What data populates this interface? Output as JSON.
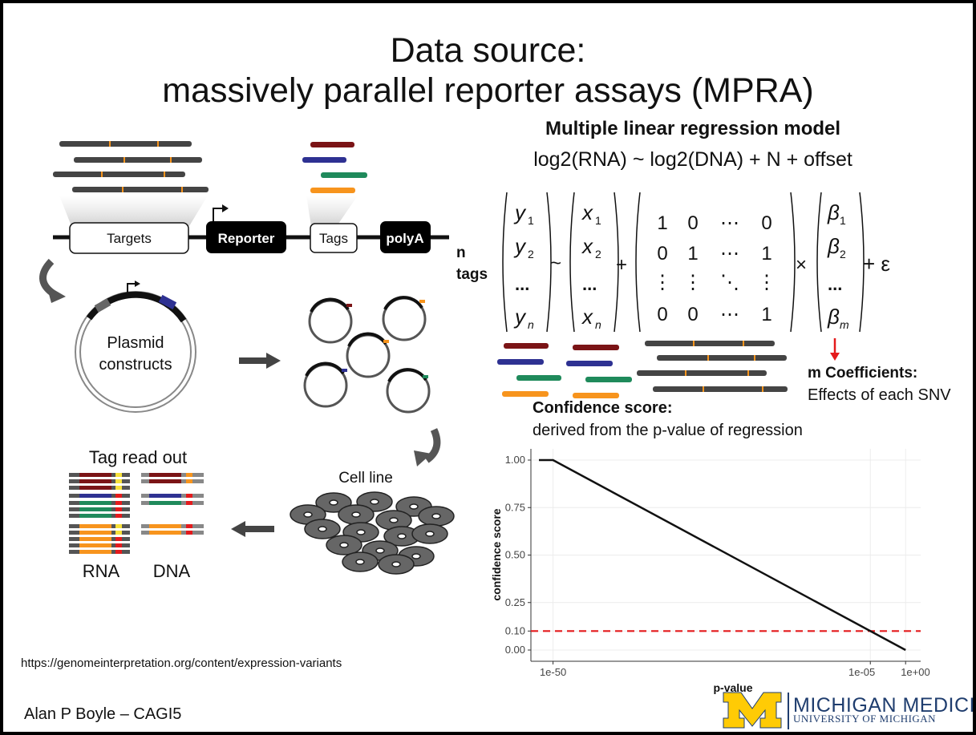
{
  "title": {
    "line1": "Data source:",
    "line2": "massively parallel reporter assays (MPRA)"
  },
  "diagram": {
    "construct_labels": {
      "targets": "Targets",
      "reporter": "Reporter",
      "tags": "Tags",
      "polya": "polyA"
    },
    "plasmid_label_1": "Plasmid",
    "plasmid_label_2": "constructs",
    "cell_line_label": "Cell line",
    "tag_readout_label": "Tag read out",
    "rna_label": "RNA",
    "dna_label": "DNA",
    "colors": {
      "dark_red": "#7b1416",
      "navy": "#2e3192",
      "green": "#1f8a5b",
      "orange": "#f7941d",
      "gray": "#444444"
    }
  },
  "regression": {
    "title": "Multiple linear regression model",
    "formula": "log2(RNA) ~ log2(DNA) + N + offset",
    "n_tags_line1": "n",
    "n_tags_line2": "tags",
    "matrix": {
      "y": [
        "y",
        "y",
        "...",
        "y"
      ],
      "y_sub": [
        "1",
        "2",
        "",
        "n"
      ],
      "x": [
        "x",
        "x",
        "...",
        "x"
      ],
      "x_sub": [
        "1",
        "2",
        "",
        "n"
      ],
      "design_rows": [
        [
          "1",
          "0",
          "⋯",
          "0"
        ],
        [
          "0",
          "1",
          "⋯",
          "1"
        ],
        [
          "⋮",
          "⋮",
          "⋱",
          "⋮"
        ],
        [
          "0",
          "0",
          "⋯",
          "1"
        ]
      ],
      "beta": [
        "β",
        "β",
        "...",
        "β"
      ],
      "beta_sub": [
        "1",
        "2",
        "",
        "m"
      ],
      "tilde": "~",
      "plus": "+",
      "times": "×",
      "error": "+ ε"
    },
    "m_coefficients_title": "m Coefficients:",
    "m_coefficients_desc": "Effects of each SNV",
    "confidence_title": "Confidence score:",
    "confidence_desc": "derived from the p-value of regression"
  },
  "chart_data": {
    "type": "line",
    "title": "",
    "xlabel": "p-value",
    "ylabel": "confidence score",
    "x_scale": "log",
    "x_ticks": [
      "1e-50",
      "1e-05",
      "1e+00"
    ],
    "y_ticks": [
      "0.00",
      "0.10",
      "0.25",
      "0.50",
      "0.75",
      "1.00"
    ],
    "ylim": [
      0,
      1
    ],
    "xlim_log10": [
      -52,
      1
    ],
    "series": [
      {
        "x_log10": [
          -52,
          -50,
          0
        ],
        "y": [
          1.0,
          1.0,
          0.0
        ],
        "color": "#111111"
      }
    ],
    "threshold": {
      "y": 0.1,
      "color": "#e41a1c",
      "style": "dashed"
    },
    "grid": true
  },
  "footer": {
    "url": "https://genomeinterpretation.org/content/expression-variants",
    "author": "Alan P Boyle – CAGI5",
    "logo_text": "MICHIGAN MEDICINE",
    "logo_subtext": "UNIVERSITY OF MICHIGAN",
    "logo_color": "#1f3d6e",
    "logo_m_color": "#ffcb05"
  }
}
